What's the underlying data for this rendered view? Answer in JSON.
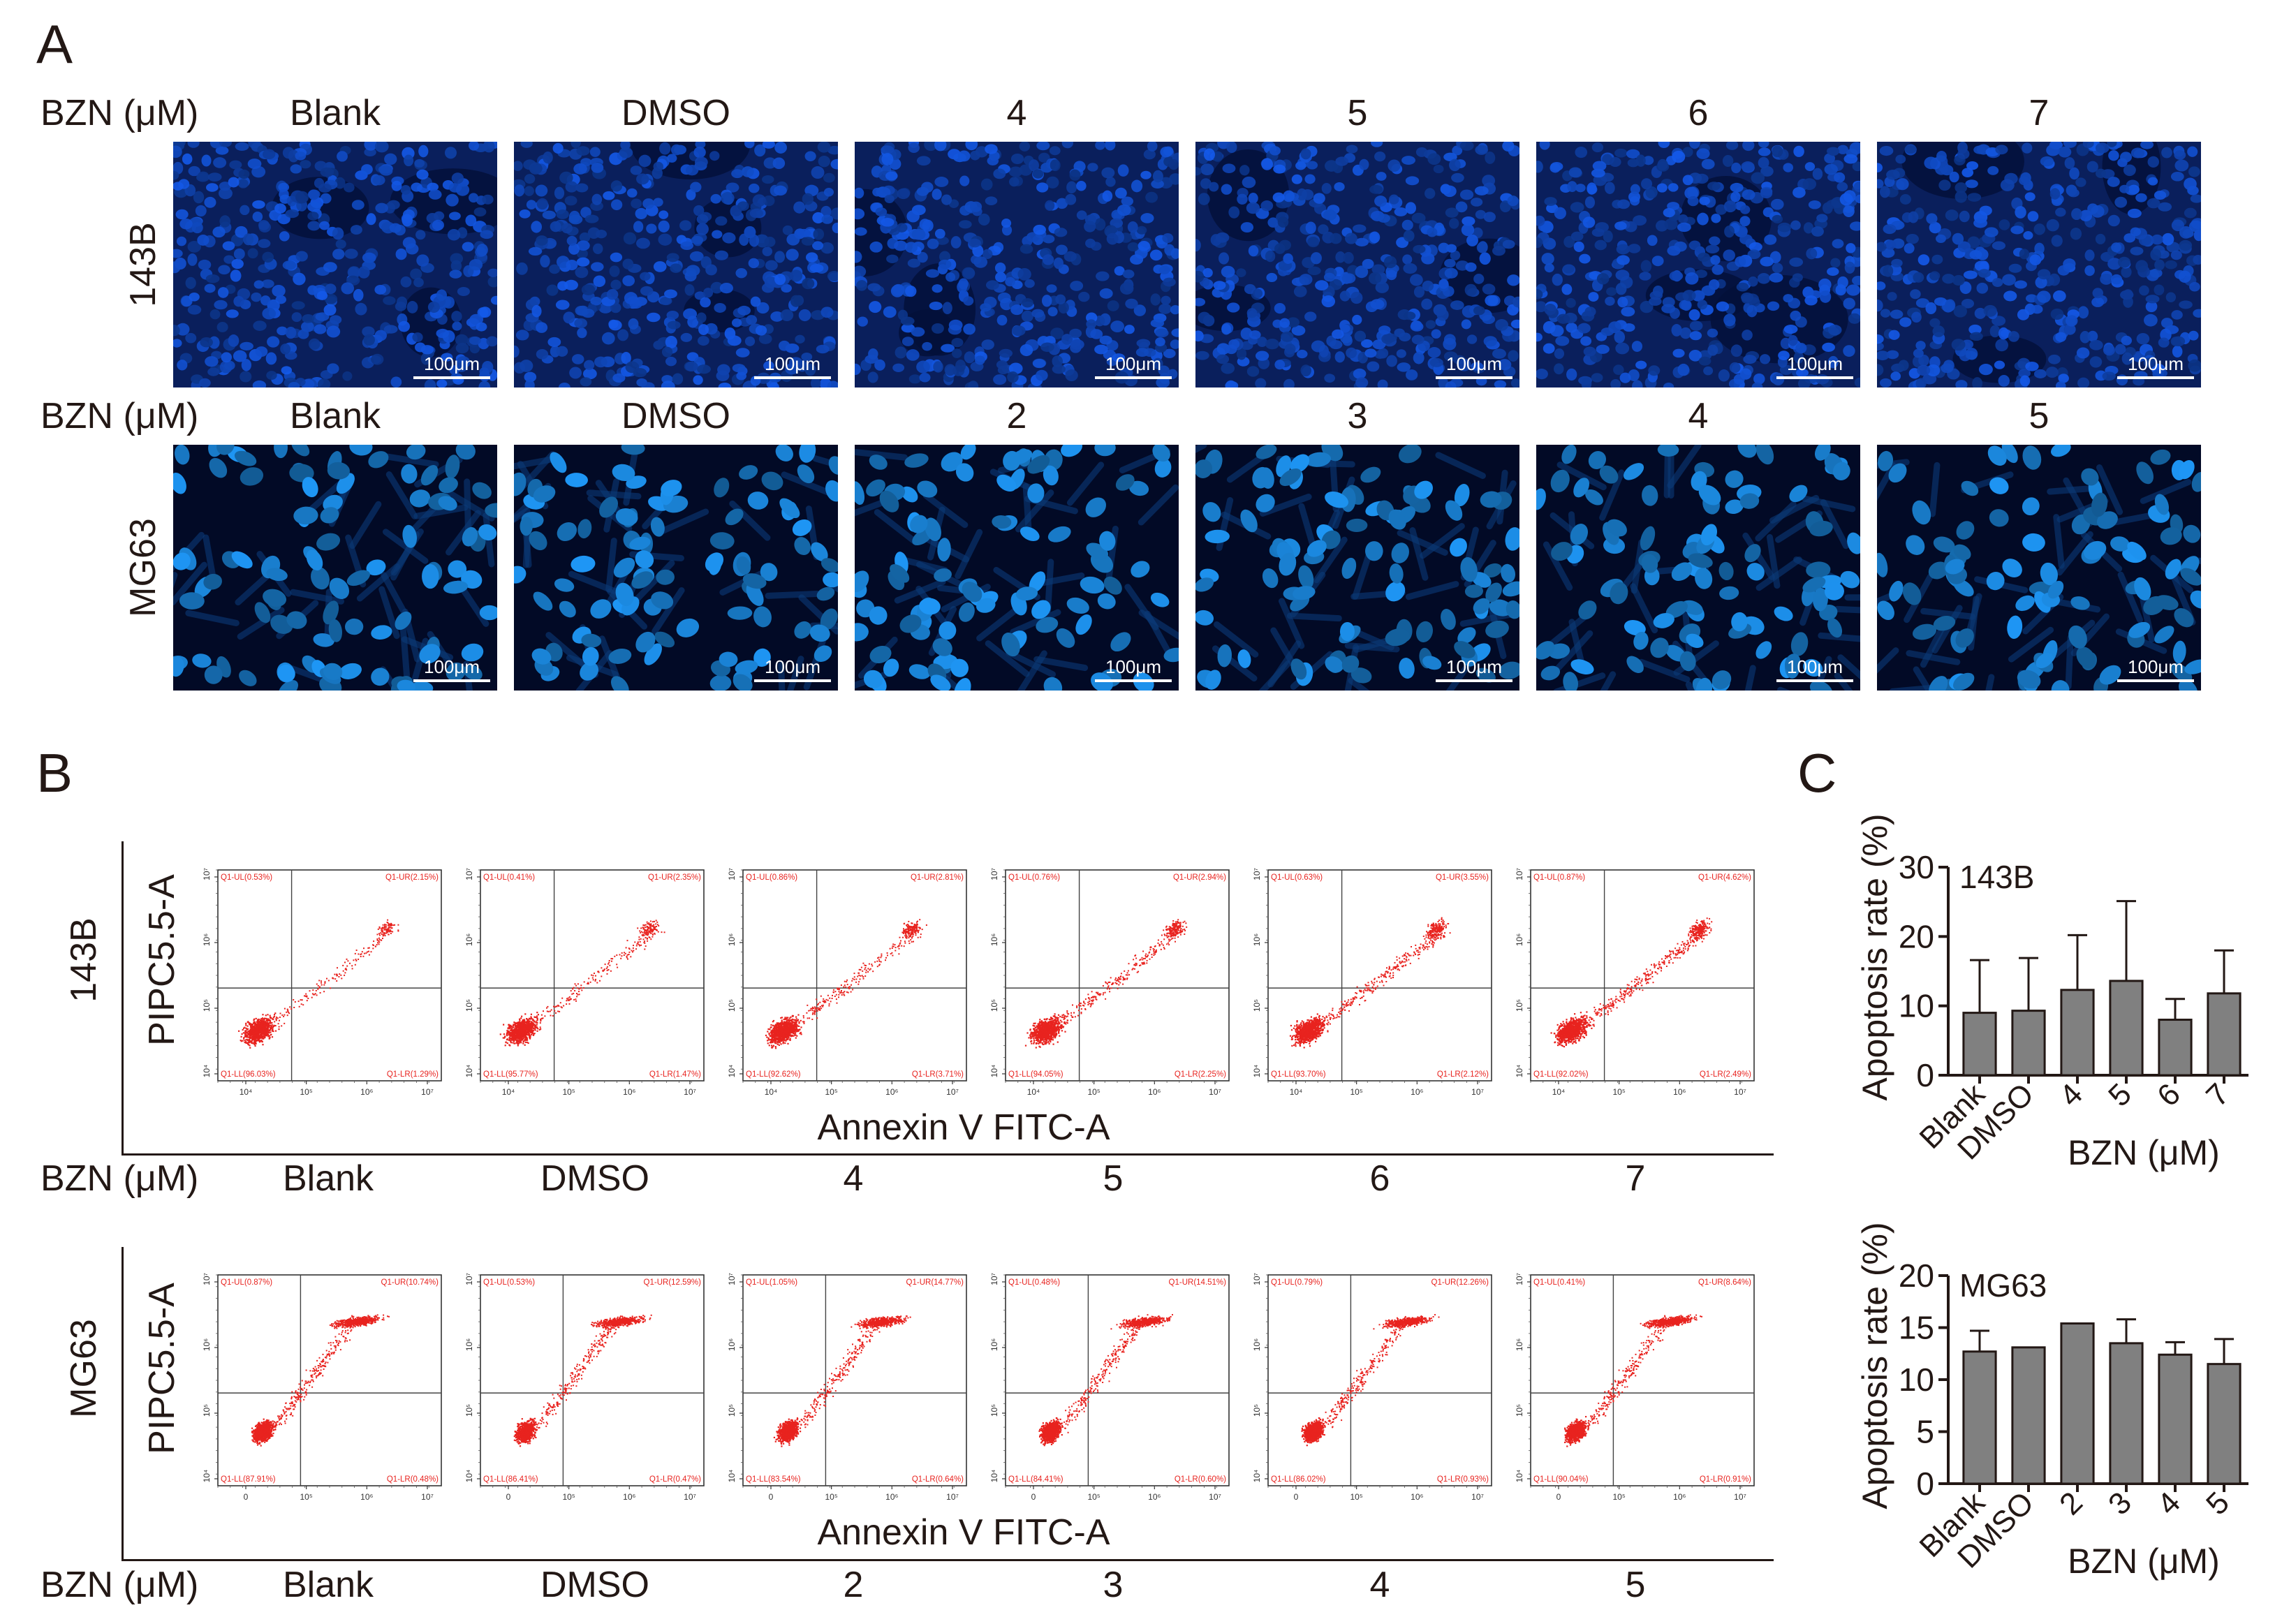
{
  "panels": {
    "a": "A",
    "b": "B",
    "c": "C"
  },
  "bzn_label": "BZN (μM)",
  "scale_label": "100μm",
  "panel_a": {
    "rows": [
      {
        "cell_line": "143B",
        "columns": [
          "Blank",
          "DMSO",
          "4",
          "5",
          "6",
          "7"
        ],
        "style": "dense"
      },
      {
        "cell_line": "MG63",
        "columns": [
          "Blank",
          "DMSO",
          "2",
          "3",
          "4",
          "5"
        ],
        "style": "spindle"
      }
    ]
  },
  "panel_b": {
    "y_axis_label": "PIPC5.5-A",
    "x_axis_label": "Annexin V FITC-A",
    "y_ticks": [
      "10⁷",
      "10⁶",
      "10⁵",
      "10⁴"
    ],
    "x_ticks_143b": [
      "10⁴",
      "10⁵",
      "10⁶",
      "10⁷"
    ],
    "x_ticks_mg63": [
      "0",
      "10⁵",
      "10⁶",
      "10⁷"
    ],
    "groups": [
      {
        "cell_line": "143B",
        "pattern": "low",
        "plots": [
          {
            "condition": "Blank",
            "ul": "Q1-UL(0.53%)",
            "ur": "Q1-UR(2.15%)",
            "ll": "Q1-LL(96.03%)",
            "lr": "Q1-LR(1.29%)"
          },
          {
            "condition": "DMSO",
            "ul": "Q1-UL(0.41%)",
            "ur": "Q1-UR(2.35%)",
            "ll": "Q1-LL(95.77%)",
            "lr": "Q1-LR(1.47%)"
          },
          {
            "condition": "4",
            "ul": "Q1-UL(0.86%)",
            "ur": "Q1-UR(2.81%)",
            "ll": "Q1-LL(92.62%)",
            "lr": "Q1-LR(3.71%)"
          },
          {
            "condition": "5",
            "ul": "Q1-UL(0.76%)",
            "ur": "Q1-UR(2.94%)",
            "ll": "Q1-LL(94.05%)",
            "lr": "Q1-LR(2.25%)"
          },
          {
            "condition": "6",
            "ul": "Q1-UL(0.63%)",
            "ur": "Q1-UR(3.55%)",
            "ll": "Q1-LL(93.70%)",
            "lr": "Q1-LR(2.12%)"
          },
          {
            "condition": "7",
            "ul": "Q1-UL(0.87%)",
            "ur": "Q1-UR(4.62%)",
            "ll": "Q1-LL(92.02%)",
            "lr": "Q1-LR(2.49%)"
          }
        ]
      },
      {
        "cell_line": "MG63",
        "pattern": "high",
        "plots": [
          {
            "condition": "Blank",
            "ul": "Q1-UL(0.87%)",
            "ur": "Q1-UR(10.74%)",
            "ll": "Q1-LL(87.91%)",
            "lr": "Q1-LR(0.48%)"
          },
          {
            "condition": "DMSO",
            "ul": "Q1-UL(0.53%)",
            "ur": "Q1-UR(12.59%)",
            "ll": "Q1-LL(86.41%)",
            "lr": "Q1-LR(0.47%)"
          },
          {
            "condition": "2",
            "ul": "Q1-UL(1.05%)",
            "ur": "Q1-UR(14.77%)",
            "ll": "Q1-LL(83.54%)",
            "lr": "Q1-LR(0.64%)"
          },
          {
            "condition": "3",
            "ul": "Q1-UL(0.48%)",
            "ur": "Q1-UR(14.51%)",
            "ll": "Q1-LL(84.41%)",
            "lr": "Q1-LR(0.60%)"
          },
          {
            "condition": "4",
            "ul": "Q1-UL(0.79%)",
            "ur": "Q1-UR(12.26%)",
            "ll": "Q1-LL(86.02%)",
            "lr": "Q1-LR(0.93%)"
          },
          {
            "condition": "5",
            "ul": "Q1-UL(0.41%)",
            "ur": "Q1-UR(8.64%)",
            "ll": "Q1-LL(90.04%)",
            "lr": "Q1-LR(0.91%)"
          }
        ]
      }
    ]
  },
  "chart_data": [
    {
      "type": "bar",
      "title": "143B",
      "ylabel": "Apoptosis rate (%)",
      "xlabel": "BZN (μM)",
      "categories": [
        "Blank",
        "DMSO",
        "4",
        "5",
        "6",
        "7"
      ],
      "values": [
        9.0,
        9.3,
        12.3,
        13.6,
        8.0,
        11.8
      ],
      "errors": [
        7.6,
        7.6,
        7.9,
        11.5,
        3.0,
        6.2
      ],
      "ylim": [
        0,
        30
      ],
      "yticks": [
        0,
        10,
        20,
        30
      ],
      "bar_color": "#808080"
    },
    {
      "type": "bar",
      "title": "MG63",
      "ylabel": "Apoptosis rate (%)",
      "xlabel": "BZN (μM)",
      "categories": [
        "Blank",
        "DMSO",
        "2",
        "3",
        "4",
        "5"
      ],
      "values": [
        12.7,
        13.1,
        15.4,
        13.5,
        12.4,
        11.5
      ],
      "errors": [
        2.0,
        0.0,
        0.0,
        2.3,
        1.2,
        2.4
      ],
      "ylim": [
        0,
        20
      ],
      "yticks": [
        0,
        5,
        10,
        15,
        20
      ],
      "bar_color": "#808080"
    }
  ]
}
